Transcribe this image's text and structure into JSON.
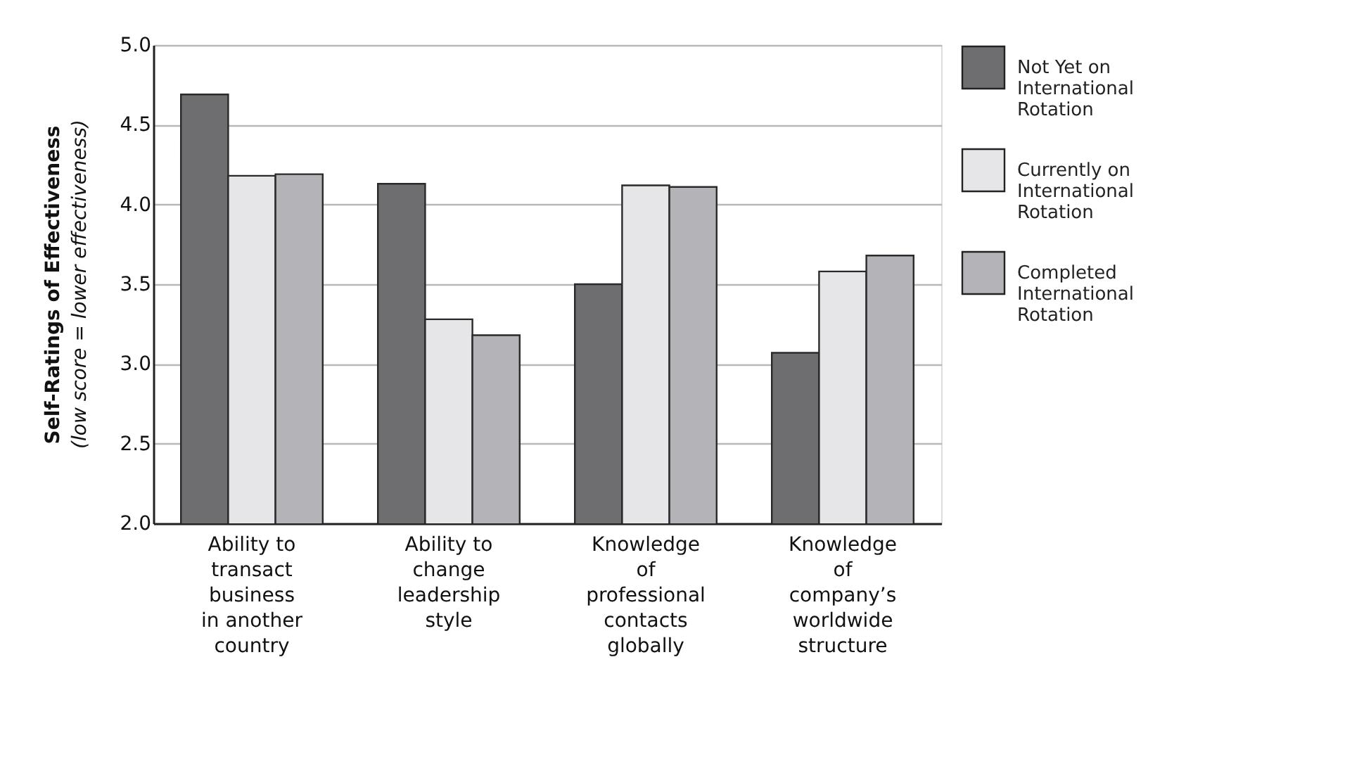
{
  "chart_data": {
    "type": "bar",
    "ylabel": "Self-Ratings of Effectiveness",
    "annotations": [
      "(low score = lower effectiveness)"
    ],
    "categories": [
      "Ability to transact business in another country",
      "Ability to change leadership style",
      "Knowledge of professional contacts globally",
      "Knowledge of company’s worldwide structure"
    ],
    "series": [
      {
        "name": "Not Yet on International Rotation",
        "color": "#6e6e70",
        "values": [
          4.69,
          4.13,
          3.5,
          3.07
        ]
      },
      {
        "name": "Currently on International Rotation",
        "color": "#e6e6e8",
        "values": [
          4.18,
          3.28,
          4.12,
          3.58
        ]
      },
      {
        "name": "Completed International Rotation",
        "color": "#b4b4b8",
        "values": [
          4.19,
          3.18,
          4.11,
          3.68
        ]
      }
    ],
    "ylim": [
      2.0,
      5.0
    ],
    "yticks": [
      {
        "value": 2,
        "label": "2.0"
      },
      {
        "value": 2.5,
        "label": "2.5"
      },
      {
        "value": 3,
        "label": "3.0"
      },
      {
        "value": 3.5,
        "label": "3.5"
      },
      {
        "value": 4,
        "label": "4.0"
      },
      {
        "value": 4.5,
        "label": "4.5"
      },
      {
        "value": 5,
        "label": "5.0"
      }
    ],
    "grid": "y",
    "legend": "right"
  }
}
